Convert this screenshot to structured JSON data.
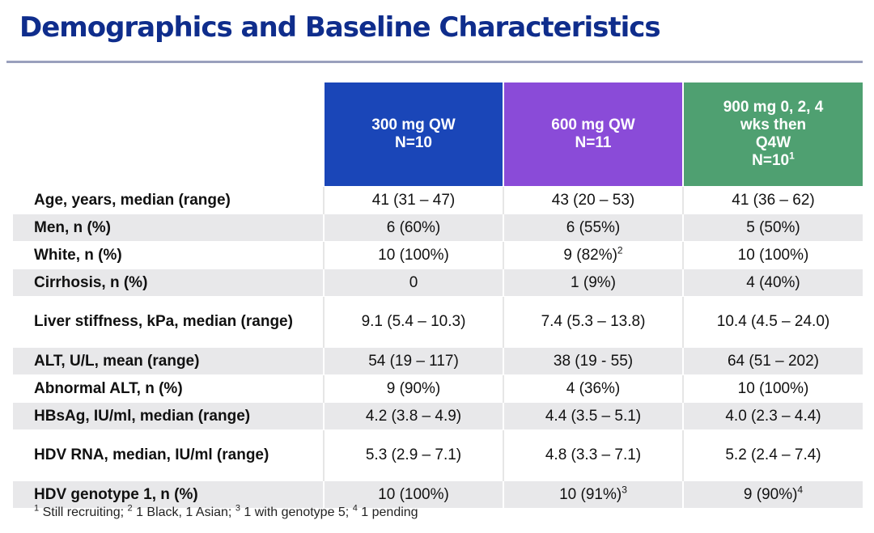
{
  "title": "Demographics and Baseline Characteristics",
  "groups": [
    {
      "line1": "300 mg QW",
      "line2": "N=10",
      "line3": "",
      "line4": "",
      "sup": "",
      "color": "#1a46b8"
    },
    {
      "line1": "600 mg QW",
      "line2": "N=11",
      "line3": "",
      "line4": "",
      "sup": "",
      "color": "#8a4bd8"
    },
    {
      "line1": "900 mg 0, 2, 4",
      "line2": "wks then",
      "line3": "Q4W",
      "line4": "N=10",
      "sup": "1",
      "color": "#4fa071"
    }
  ],
  "rows": [
    {
      "label": "Age, years, median (range)",
      "values": [
        "41 (31 – 47)",
        "43 (20 – 53)",
        "41 (36 – 62)"
      ],
      "sups": [
        "",
        "",
        ""
      ]
    },
    {
      "label": "Men, n (%)",
      "values": [
        "6 (60%)",
        "6 (55%)",
        "5 (50%)"
      ],
      "sups": [
        "",
        "",
        ""
      ]
    },
    {
      "label": "White, n (%)",
      "values": [
        "10 (100%)",
        "9 (82%)",
        "10 (100%)"
      ],
      "sups": [
        "",
        "2",
        ""
      ]
    },
    {
      "label": "Cirrhosis, n (%)",
      "values": [
        "0",
        "1 (9%)",
        "4 (40%)"
      ],
      "sups": [
        "",
        "",
        ""
      ]
    },
    {
      "label": "Liver stiffness, kPa, median (range)",
      "values": [
        "9.1 (5.4 – 10.3)",
        "7.4 (5.3 – 13.8)",
        "10.4 (4.5 – 24.0)"
      ],
      "sups": [
        "",
        "",
        ""
      ]
    },
    {
      "label": "ALT, U/L, mean (range)",
      "values": [
        "54 (19 – 117)",
        "38 (19 - 55)",
        "64 (51 – 202)"
      ],
      "sups": [
        "",
        "",
        ""
      ]
    },
    {
      "label": "Abnormal ALT, n (%)",
      "values": [
        "9 (90%)",
        "4 (36%)",
        "10 (100%)"
      ],
      "sups": [
        "",
        "",
        ""
      ]
    },
    {
      "label": "HBsAg, IU/ml, median (range)",
      "values": [
        "4.2 (3.8 – 4.9)",
        "4.4 (3.5 – 5.1)",
        "4.0 (2.3 – 4.4)"
      ],
      "sups": [
        "",
        "",
        ""
      ]
    },
    {
      "label": "HDV RNA, median, IU/ml (range)",
      "values": [
        "5.3 (2.9 – 7.1)",
        "4.8 (3.3 – 7.1)",
        "5.2  (2.4 – 7.4)"
      ],
      "sups": [
        "",
        "",
        ""
      ]
    },
    {
      "label": "HDV genotype 1, n (%)",
      "values": [
        "10 (100%)",
        "10 (91%)",
        "9 (90%)"
      ],
      "sups": [
        "",
        "3",
        "4"
      ]
    }
  ],
  "footnotes": [
    {
      "sup": "1",
      "text": " Still recruiting; "
    },
    {
      "sup": "2",
      "text": " 1 Black, 1 Asian; "
    },
    {
      "sup": "3",
      "text": " 1 with genotype 5; "
    },
    {
      "sup": "4",
      "text": " 1 pending"
    }
  ]
}
